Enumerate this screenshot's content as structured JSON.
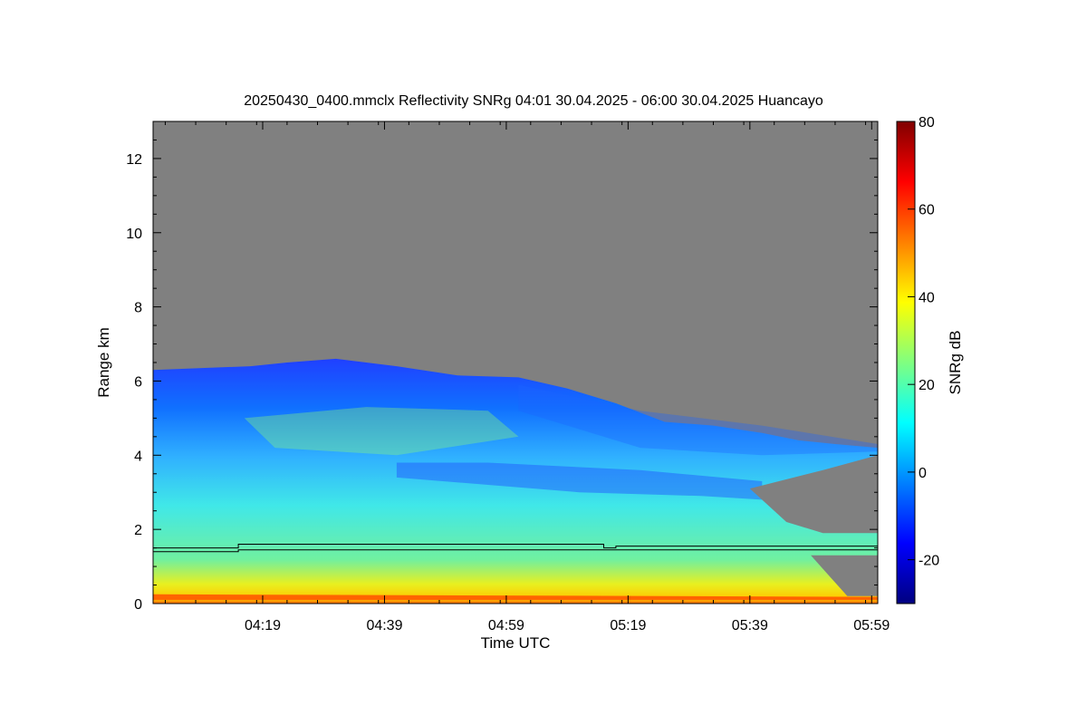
{
  "chart_data": {
    "type": "heatmap",
    "title": "20250430_0400.mmclx Reflectivity SNRg   04:01 30.04.2025 - 06:00 30.04.2025 Huancayo",
    "xlabel": "Time UTC",
    "ylabel": "Range km",
    "x_ticks": [
      {
        "minute": 18,
        "label": "04:19"
      },
      {
        "minute": 38,
        "label": "04:39"
      },
      {
        "minute": 58,
        "label": "04:59"
      },
      {
        "minute": 78,
        "label": "05:19"
      },
      {
        "minute": 98,
        "label": "05:39"
      },
      {
        "minute": 118,
        "label": "05:59"
      }
    ],
    "x_range_minutes_after_0401": [
      0,
      119
    ],
    "y_ticks": [
      0,
      2,
      4,
      6,
      8,
      10,
      12
    ],
    "ylim": [
      0,
      13
    ],
    "colorbar": {
      "label": "SNRg dB",
      "range": [
        -30,
        80
      ],
      "ticks": [
        -20,
        0,
        20,
        40,
        60,
        80
      ],
      "colors": [
        "#000080",
        "#0000ff",
        "#0080ff",
        "#00ffff",
        "#80ff80",
        "#ffff00",
        "#ff8000",
        "#ff0000",
        "#800000"
      ]
    },
    "no_data_color": "#808080",
    "echo_top_km": [
      [
        0,
        6.3
      ],
      [
        8,
        6.35
      ],
      [
        16,
        6.4
      ],
      [
        22,
        6.5
      ],
      [
        30,
        6.6
      ],
      [
        40,
        6.4
      ],
      [
        50,
        6.15
      ],
      [
        60,
        6.1
      ],
      [
        68,
        5.8
      ],
      [
        76,
        5.4
      ],
      [
        84,
        4.9
      ],
      [
        92,
        4.8
      ],
      [
        100,
        4.6
      ],
      [
        106,
        4.4
      ],
      [
        112,
        4.3
      ],
      [
        119,
        4.2
      ]
    ],
    "line_1_km": [
      [
        0,
        1.5
      ],
      [
        14,
        1.5
      ],
      [
        14,
        1.6
      ],
      [
        74,
        1.6
      ],
      [
        74,
        1.5
      ],
      [
        76,
        1.5
      ],
      [
        76,
        1.55
      ],
      [
        119,
        1.55
      ]
    ],
    "line_2_km": [
      [
        0,
        1.4
      ],
      [
        14,
        1.4
      ],
      [
        14,
        1.45
      ],
      [
        119,
        1.45
      ]
    ]
  }
}
